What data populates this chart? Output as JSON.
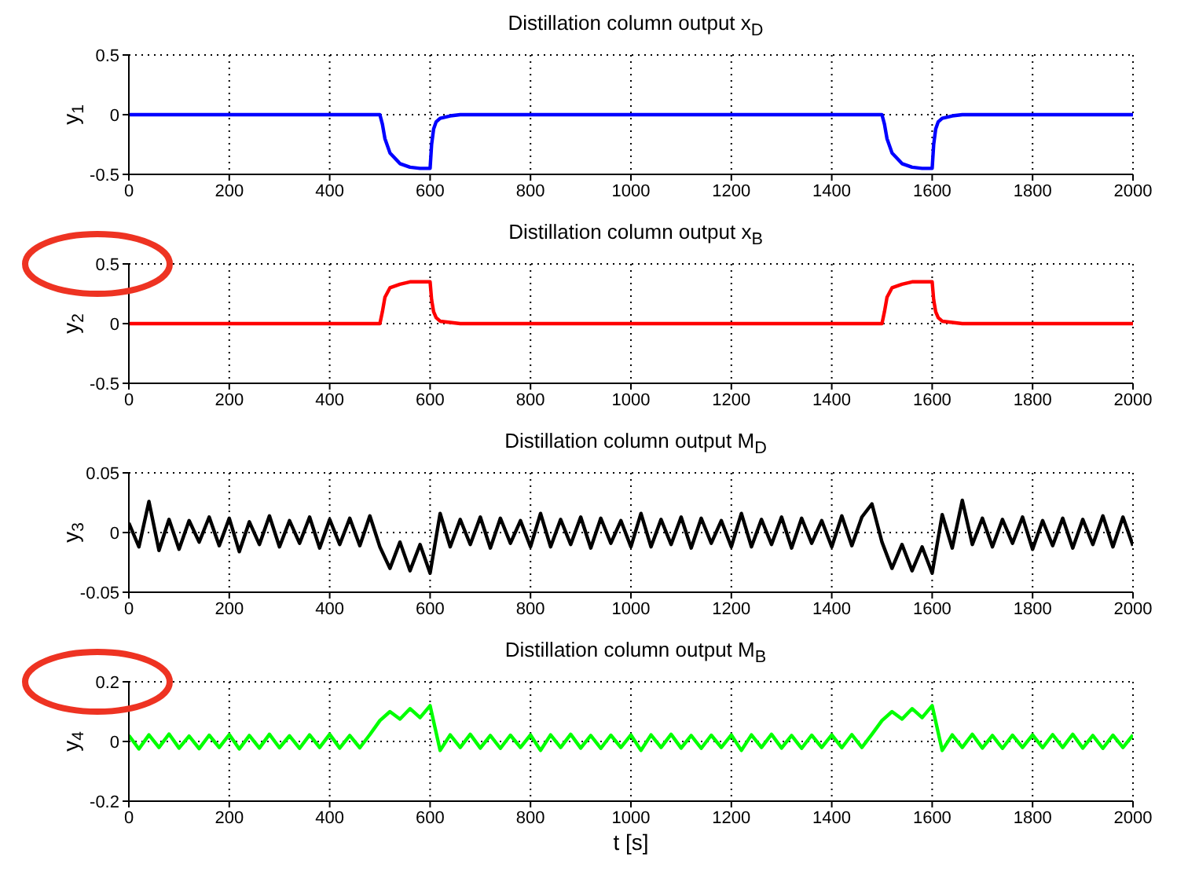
{
  "chart_data": [
    {
      "type": "line",
      "title": "Distillation column output x$_{D}$",
      "ylabel": "y$_{1}$",
      "x": [
        0,
        200,
        400,
        500,
        505,
        510,
        520,
        540,
        560,
        580,
        600,
        603,
        607,
        612,
        620,
        640,
        660,
        700,
        900,
        1100,
        1300,
        1500,
        1505,
        1510,
        1520,
        1540,
        1560,
        1580,
        1600,
        1603,
        1607,
        1612,
        1620,
        1640,
        1660,
        1700,
        1900,
        2000
      ],
      "series": [
        {
          "color": "#0000ff",
          "values": [
            0,
            0,
            0,
            0,
            -0.08,
            -0.2,
            -0.32,
            -0.41,
            -0.44,
            -0.45,
            -0.45,
            -0.25,
            -0.12,
            -0.06,
            -0.03,
            -0.01,
            0,
            0,
            0,
            0,
            0,
            0,
            -0.08,
            -0.2,
            -0.32,
            -0.41,
            -0.44,
            -0.45,
            -0.45,
            -0.25,
            -0.12,
            -0.06,
            -0.03,
            -0.01,
            0,
            0,
            0,
            0
          ]
        }
      ],
      "xlim": [
        0,
        2000
      ],
      "xticks": [
        0,
        200,
        400,
        600,
        800,
        1000,
        1200,
        1400,
        1600,
        1800,
        2000
      ],
      "ylim": [
        -0.5,
        0.5
      ],
      "yticks": [
        -0.5,
        0,
        0.5
      ],
      "grid": true
    },
    {
      "type": "line",
      "title": "Distillation column output x$_{B}$",
      "ylabel": "y$_{2}$",
      "x": [
        0,
        200,
        400,
        500,
        505,
        510,
        520,
        540,
        560,
        580,
        600,
        603,
        607,
        612,
        620,
        640,
        660,
        700,
        900,
        1100,
        1300,
        1500,
        1505,
        1510,
        1520,
        1540,
        1560,
        1580,
        1600,
        1603,
        1607,
        1612,
        1620,
        1640,
        1660,
        1700,
        1900,
        2000
      ],
      "series": [
        {
          "color": "#ff0000",
          "values": [
            0,
            0,
            0,
            0,
            0.1,
            0.22,
            0.3,
            0.33,
            0.35,
            0.35,
            0.35,
            0.2,
            0.1,
            0.05,
            0.02,
            0.01,
            0,
            0,
            0,
            0,
            0,
            0,
            0.1,
            0.22,
            0.3,
            0.33,
            0.35,
            0.35,
            0.35,
            0.2,
            0.1,
            0.05,
            0.02,
            0.01,
            0,
            0,
            0,
            0
          ]
        }
      ],
      "xlim": [
        0,
        2000
      ],
      "xticks": [
        0,
        200,
        400,
        600,
        800,
        1000,
        1200,
        1400,
        1600,
        1800,
        2000
      ],
      "ylim": [
        -0.5,
        0.5
      ],
      "yticks": [
        -0.5,
        0,
        0.5
      ],
      "grid": true
    },
    {
      "type": "line",
      "title": "Distillation column output M$_{D}$",
      "ylabel": "y$_{3}$",
      "x": [
        0,
        20,
        40,
        60,
        80,
        100,
        120,
        140,
        160,
        180,
        200,
        220,
        240,
        260,
        280,
        300,
        320,
        340,
        360,
        380,
        400,
        420,
        440,
        460,
        480,
        500,
        520,
        540,
        560,
        580,
        600,
        620,
        640,
        660,
        680,
        700,
        720,
        740,
        760,
        780,
        800,
        820,
        840,
        860,
        880,
        900,
        920,
        940,
        960,
        980,
        1000,
        1020,
        1040,
        1060,
        1080,
        1100,
        1120,
        1140,
        1160,
        1180,
        1200,
        1220,
        1240,
        1260,
        1280,
        1300,
        1320,
        1340,
        1360,
        1380,
        1400,
        1420,
        1440,
        1460,
        1480,
        1500,
        1520,
        1540,
        1560,
        1580,
        1600,
        1620,
        1640,
        1660,
        1680,
        1700,
        1720,
        1740,
        1760,
        1780,
        1800,
        1820,
        1840,
        1860,
        1880,
        1900,
        1920,
        1940,
        1960,
        1980,
        2000
      ],
      "series": [
        {
          "color": "#000000",
          "values": [
            0.008,
            -0.012,
            0.026,
            -0.015,
            0.011,
            -0.014,
            0.01,
            -0.008,
            0.013,
            -0.011,
            0.012,
            -0.016,
            0.009,
            -0.01,
            0.014,
            -0.012,
            0.01,
            -0.009,
            0.013,
            -0.013,
            0.011,
            -0.01,
            0.012,
            -0.011,
            0.014,
            -0.012,
            -0.03,
            -0.008,
            -0.032,
            -0.01,
            -0.034,
            0.016,
            -0.012,
            0.011,
            -0.01,
            0.013,
            -0.013,
            0.012,
            -0.009,
            0.01,
            -0.012,
            0.016,
            -0.012,
            0.011,
            -0.01,
            0.013,
            -0.013,
            0.012,
            -0.009,
            0.01,
            -0.012,
            0.016,
            -0.012,
            0.011,
            -0.01,
            0.013,
            -0.013,
            0.012,
            -0.009,
            0.01,
            -0.012,
            0.016,
            -0.012,
            0.011,
            -0.01,
            0.013,
            -0.013,
            0.012,
            -0.009,
            0.01,
            -0.012,
            0.014,
            -0.011,
            0.013,
            0.024,
            -0.008,
            -0.03,
            -0.01,
            -0.032,
            -0.012,
            -0.034,
            0.015,
            -0.013,
            0.027,
            -0.01,
            0.012,
            -0.012,
            0.011,
            -0.009,
            0.013,
            -0.014,
            0.01,
            -0.011,
            0.012,
            -0.013,
            0.011,
            -0.01,
            0.014,
            -0.012,
            0.013,
            -0.011
          ]
        }
      ],
      "xlim": [
        0,
        2000
      ],
      "xticks": [
        0,
        200,
        400,
        600,
        800,
        1000,
        1200,
        1400,
        1600,
        1800,
        2000
      ],
      "ylim": [
        -0.05,
        0.05
      ],
      "yticks": [
        -0.05,
        0,
        0.05
      ],
      "grid": true
    },
    {
      "type": "line",
      "title": "Distillation column output M$_{B}$",
      "ylabel": "y$_{4}$",
      "xlabel": "t [s]",
      "x": [
        0,
        20,
        40,
        60,
        80,
        100,
        120,
        140,
        160,
        180,
        200,
        220,
        240,
        260,
        280,
        300,
        320,
        340,
        360,
        380,
        400,
        420,
        440,
        460,
        480,
        500,
        520,
        540,
        560,
        580,
        600,
        620,
        640,
        660,
        680,
        700,
        720,
        740,
        760,
        780,
        800,
        820,
        840,
        860,
        880,
        900,
        920,
        940,
        960,
        980,
        1000,
        1020,
        1040,
        1060,
        1080,
        1100,
        1120,
        1140,
        1160,
        1180,
        1200,
        1220,
        1240,
        1260,
        1280,
        1300,
        1320,
        1340,
        1360,
        1380,
        1400,
        1420,
        1440,
        1460,
        1480,
        1500,
        1520,
        1540,
        1560,
        1580,
        1600,
        1620,
        1640,
        1660,
        1680,
        1700,
        1720,
        1740,
        1760,
        1780,
        1800,
        1820,
        1840,
        1860,
        1880,
        1900,
        1920,
        1940,
        1960,
        1980,
        2000
      ],
      "series": [
        {
          "color": "#00ff00",
          "values": [
            0.02,
            -0.025,
            0.022,
            -0.02,
            0.025,
            -0.022,
            0.018,
            -0.024,
            0.021,
            -0.02,
            0.023,
            -0.025,
            0.02,
            -0.022,
            0.024,
            -0.021,
            0.019,
            -0.023,
            0.022,
            -0.02,
            0.024,
            -0.022,
            0.02,
            -0.021,
            0.023,
            0.07,
            0.1,
            0.075,
            0.11,
            0.08,
            0.12,
            -0.03,
            0.022,
            -0.02,
            0.024,
            -0.022,
            0.02,
            -0.023,
            0.021,
            -0.02,
            0.022,
            -0.03,
            0.022,
            -0.02,
            0.024,
            -0.022,
            0.02,
            -0.023,
            0.021,
            -0.02,
            0.022,
            -0.03,
            0.022,
            -0.02,
            0.024,
            -0.022,
            0.02,
            -0.023,
            0.021,
            -0.02,
            0.022,
            -0.03,
            0.022,
            -0.02,
            0.024,
            -0.022,
            0.02,
            -0.023,
            0.021,
            -0.02,
            0.022,
            -0.021,
            0.023,
            -0.02,
            0.024,
            0.07,
            0.1,
            0.075,
            0.11,
            0.08,
            0.12,
            -0.03,
            0.022,
            -0.02,
            0.024,
            -0.022,
            0.02,
            -0.023,
            0.021,
            -0.02,
            0.022,
            -0.021,
            0.023,
            -0.02,
            0.024,
            -0.022,
            0.02,
            -0.023,
            0.021,
            -0.02,
            0.022
          ]
        }
      ],
      "xlim": [
        0,
        2000
      ],
      "xticks": [
        0,
        200,
        400,
        600,
        800,
        1000,
        1200,
        1400,
        1600,
        1800,
        2000
      ],
      "ylim": [
        -0.2,
        0.2
      ],
      "yticks": [
        -0.2,
        0,
        0.2
      ],
      "grid": true
    }
  ]
}
